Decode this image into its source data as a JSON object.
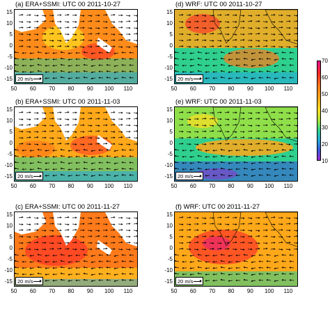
{
  "panels": [
    {
      "title": "(a) ERA+SSMI: UTC 00 2011-10-27"
    },
    {
      "title": "(d) WRF: UTC 00 2011-10-27"
    },
    {
      "title": "(b) ERA+SSMI: UTC 00 2011-11-03"
    },
    {
      "title": "(e) WRF: UTC 00 2011-11-03"
    },
    {
      "title": "(c) ERA+SSMI: UTC 00 2011-11-27"
    },
    {
      "title": "(f) WRF: UTC 00 2011-11-27"
    }
  ],
  "y_ticks": [
    "15",
    "10",
    "5",
    "0",
    "-5",
    "-10",
    "-15"
  ],
  "x_ticks": [
    "50",
    "60",
    "70",
    "80",
    "90",
    "100",
    "110"
  ],
  "reference_vector": "20 m/s",
  "colorbar": {
    "ticks": [
      "70",
      "60",
      "50",
      "40",
      "30",
      "20",
      "10"
    ],
    "colors": [
      "#e0108c",
      "#ff2a2a",
      "#ff7a1a",
      "#ffa81a",
      "#ffdd22",
      "#a8e23a",
      "#2fd08e",
      "#27a8d8",
      "#3a58d8",
      "#9a28d0"
    ]
  },
  "colors": {
    "land": "#ffffff",
    "ocean_base": "#ff8c1a",
    "cloud_high": "#ff2a2a",
    "moisture_low": "#2fd08e",
    "dry": "#3a58d8"
  }
}
